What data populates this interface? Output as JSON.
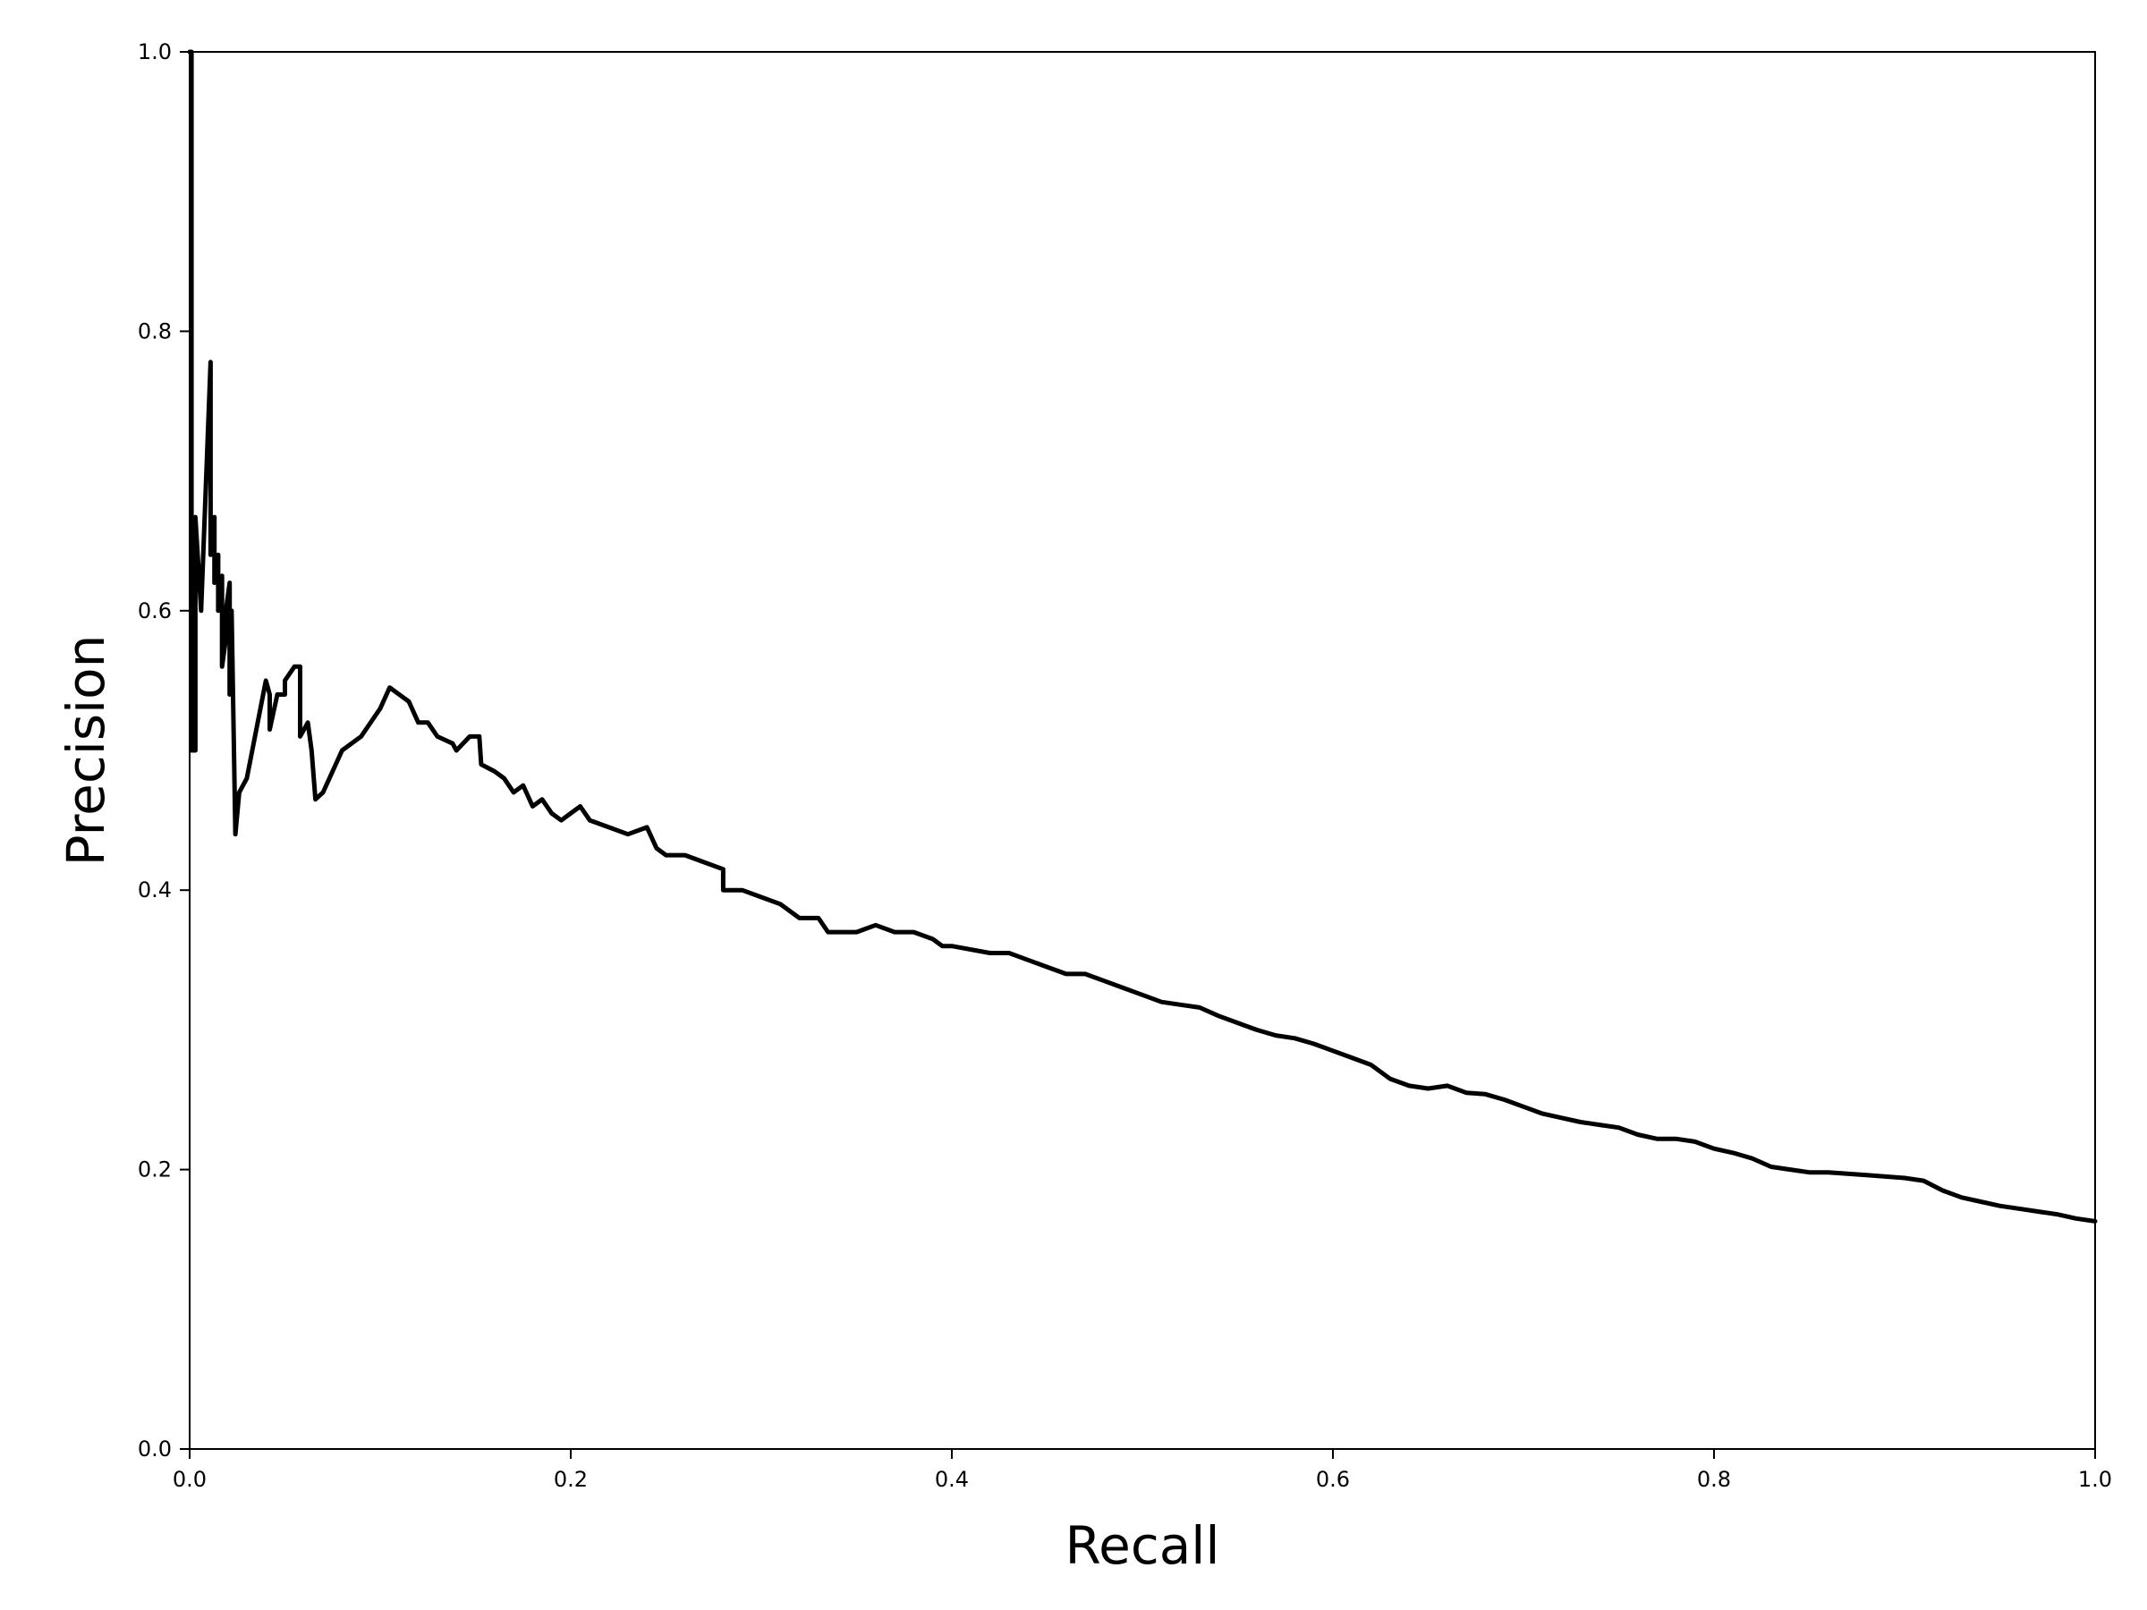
{
  "chart_data": {
    "type": "line",
    "xlabel": "Recall",
    "ylabel": "Precision",
    "xlim": [
      0.0,
      1.0
    ],
    "ylim": [
      0.0,
      1.0
    ],
    "xticks": [
      "0.0",
      "0.2",
      "0.4",
      "0.6",
      "0.8",
      "1.0"
    ],
    "yticks": [
      "0.0",
      "0.2",
      "0.4",
      "0.6",
      "0.8",
      "1.0"
    ],
    "grid": false,
    "legend": "none",
    "series": [
      {
        "color": "#000000",
        "points": [
          [
            0.0,
            1.0
          ],
          [
            0.001,
            1.0
          ],
          [
            0.001,
            0.5
          ],
          [
            0.003,
            0.5
          ],
          [
            0.003,
            0.667
          ],
          [
            0.006,
            0.6
          ],
          [
            0.011,
            0.778
          ],
          [
            0.011,
            0.64
          ],
          [
            0.013,
            0.667
          ],
          [
            0.013,
            0.62
          ],
          [
            0.015,
            0.64
          ],
          [
            0.015,
            0.6
          ],
          [
            0.017,
            0.625
          ],
          [
            0.017,
            0.56
          ],
          [
            0.019,
            0.58
          ],
          [
            0.019,
            0.6
          ],
          [
            0.021,
            0.62
          ],
          [
            0.021,
            0.54
          ],
          [
            0.022,
            0.6
          ],
          [
            0.024,
            0.44
          ],
          [
            0.026,
            0.47
          ],
          [
            0.03,
            0.48
          ],
          [
            0.04,
            0.55
          ],
          [
            0.042,
            0.54
          ],
          [
            0.042,
            0.515
          ],
          [
            0.046,
            0.54
          ],
          [
            0.05,
            0.54
          ],
          [
            0.05,
            0.55
          ],
          [
            0.055,
            0.56
          ],
          [
            0.058,
            0.56
          ],
          [
            0.058,
            0.51
          ],
          [
            0.062,
            0.52
          ],
          [
            0.064,
            0.5
          ],
          [
            0.066,
            0.465
          ],
          [
            0.07,
            0.47
          ],
          [
            0.08,
            0.5
          ],
          [
            0.09,
            0.51
          ],
          [
            0.1,
            0.53
          ],
          [
            0.105,
            0.545
          ],
          [
            0.11,
            0.54
          ],
          [
            0.115,
            0.535
          ],
          [
            0.12,
            0.52
          ],
          [
            0.125,
            0.52
          ],
          [
            0.13,
            0.51
          ],
          [
            0.138,
            0.505
          ],
          [
            0.14,
            0.5
          ],
          [
            0.147,
            0.51
          ],
          [
            0.152,
            0.51
          ],
          [
            0.153,
            0.49
          ],
          [
            0.16,
            0.485
          ],
          [
            0.165,
            0.48
          ],
          [
            0.17,
            0.47
          ],
          [
            0.175,
            0.475
          ],
          [
            0.18,
            0.46
          ],
          [
            0.185,
            0.465
          ],
          [
            0.19,
            0.455
          ],
          [
            0.195,
            0.45
          ],
          [
            0.2,
            0.455
          ],
          [
            0.205,
            0.46
          ],
          [
            0.21,
            0.45
          ],
          [
            0.22,
            0.445
          ],
          [
            0.23,
            0.44
          ],
          [
            0.24,
            0.445
          ],
          [
            0.245,
            0.43
          ],
          [
            0.25,
            0.425
          ],
          [
            0.26,
            0.425
          ],
          [
            0.27,
            0.42
          ],
          [
            0.28,
            0.415
          ],
          [
            0.28,
            0.4
          ],
          [
            0.29,
            0.4
          ],
          [
            0.3,
            0.395
          ],
          [
            0.31,
            0.39
          ],
          [
            0.32,
            0.38
          ],
          [
            0.33,
            0.38
          ],
          [
            0.335,
            0.37
          ],
          [
            0.35,
            0.37
          ],
          [
            0.36,
            0.375
          ],
          [
            0.37,
            0.37
          ],
          [
            0.38,
            0.37
          ],
          [
            0.39,
            0.365
          ],
          [
            0.395,
            0.36
          ],
          [
            0.4,
            0.36
          ],
          [
            0.42,
            0.355
          ],
          [
            0.43,
            0.355
          ],
          [
            0.44,
            0.35
          ],
          [
            0.45,
            0.345
          ],
          [
            0.46,
            0.34
          ],
          [
            0.47,
            0.34
          ],
          [
            0.48,
            0.335
          ],
          [
            0.49,
            0.33
          ],
          [
            0.5,
            0.325
          ],
          [
            0.51,
            0.32
          ],
          [
            0.52,
            0.318
          ],
          [
            0.53,
            0.316
          ],
          [
            0.54,
            0.31
          ],
          [
            0.55,
            0.305
          ],
          [
            0.56,
            0.3
          ],
          [
            0.57,
            0.296
          ],
          [
            0.58,
            0.294
          ],
          [
            0.59,
            0.29
          ],
          [
            0.6,
            0.285
          ],
          [
            0.61,
            0.28
          ],
          [
            0.62,
            0.275
          ],
          [
            0.63,
            0.265
          ],
          [
            0.64,
            0.26
          ],
          [
            0.65,
            0.258
          ],
          [
            0.66,
            0.26
          ],
          [
            0.67,
            0.255
          ],
          [
            0.68,
            0.254
          ],
          [
            0.69,
            0.25
          ],
          [
            0.7,
            0.245
          ],
          [
            0.71,
            0.24
          ],
          [
            0.72,
            0.237
          ],
          [
            0.73,
            0.234
          ],
          [
            0.74,
            0.232
          ],
          [
            0.75,
            0.23
          ],
          [
            0.76,
            0.225
          ],
          [
            0.77,
            0.222
          ],
          [
            0.78,
            0.222
          ],
          [
            0.79,
            0.22
          ],
          [
            0.8,
            0.215
          ],
          [
            0.81,
            0.212
          ],
          [
            0.82,
            0.208
          ],
          [
            0.83,
            0.202
          ],
          [
            0.84,
            0.2
          ],
          [
            0.85,
            0.198
          ],
          [
            0.86,
            0.198
          ],
          [
            0.87,
            0.197
          ],
          [
            0.88,
            0.196
          ],
          [
            0.89,
            0.195
          ],
          [
            0.9,
            0.194
          ],
          [
            0.91,
            0.192
          ],
          [
            0.92,
            0.185
          ],
          [
            0.93,
            0.18
          ],
          [
            0.94,
            0.177
          ],
          [
            0.95,
            0.174
          ],
          [
            0.96,
            0.172
          ],
          [
            0.97,
            0.17
          ],
          [
            0.98,
            0.168
          ],
          [
            0.99,
            0.165
          ],
          [
            1.0,
            0.163
          ]
        ]
      }
    ]
  }
}
